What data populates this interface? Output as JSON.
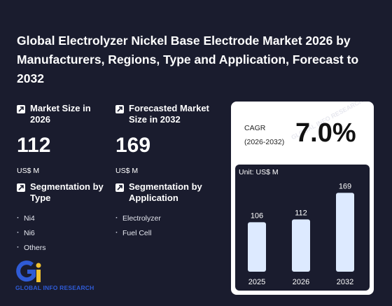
{
  "title": "Global Electrolyzer Nickel Base Electrode Market 2026 by Manufacturers, Regions, Type and Application, Forecast to 2032",
  "market_size": {
    "label": "Market Size in 2026",
    "value": "112",
    "unit": "US$ M"
  },
  "forecast_size": {
    "label": "Forecasted Market Size in 2032",
    "value": "169",
    "unit": "US$ M"
  },
  "segmentation_type": {
    "label": "Segmentation by Type",
    "items": [
      "Ni4",
      "Ni6",
      "Others"
    ]
  },
  "segmentation_application": {
    "label": "Segmentation by Application",
    "items": [
      "Electrolyzer",
      "Fuel Cell"
    ]
  },
  "cagr": {
    "label_line1": "CAGR",
    "label_line2": "(2026-2032)",
    "value": "7.0%"
  },
  "logo": {
    "text": "GLOBAL INFO RESEARCH",
    "colors": {
      "blue": "#2f5bd6",
      "yellow": "#f2c230"
    }
  },
  "watermark": "GLOBAL INFO RESEARCH",
  "colors": {
    "background": "#1a1c2e",
    "bar": "#ddeaff",
    "card": "#ffffff"
  },
  "chart_data": {
    "type": "bar",
    "unit_label": "Unit: US$ M",
    "categories": [
      "2025",
      "2026",
      "2032"
    ],
    "values": [
      106,
      112,
      169
    ],
    "value_labels": [
      "106",
      "112",
      "169"
    ],
    "ylim": [
      0,
      180
    ],
    "grid": false
  }
}
